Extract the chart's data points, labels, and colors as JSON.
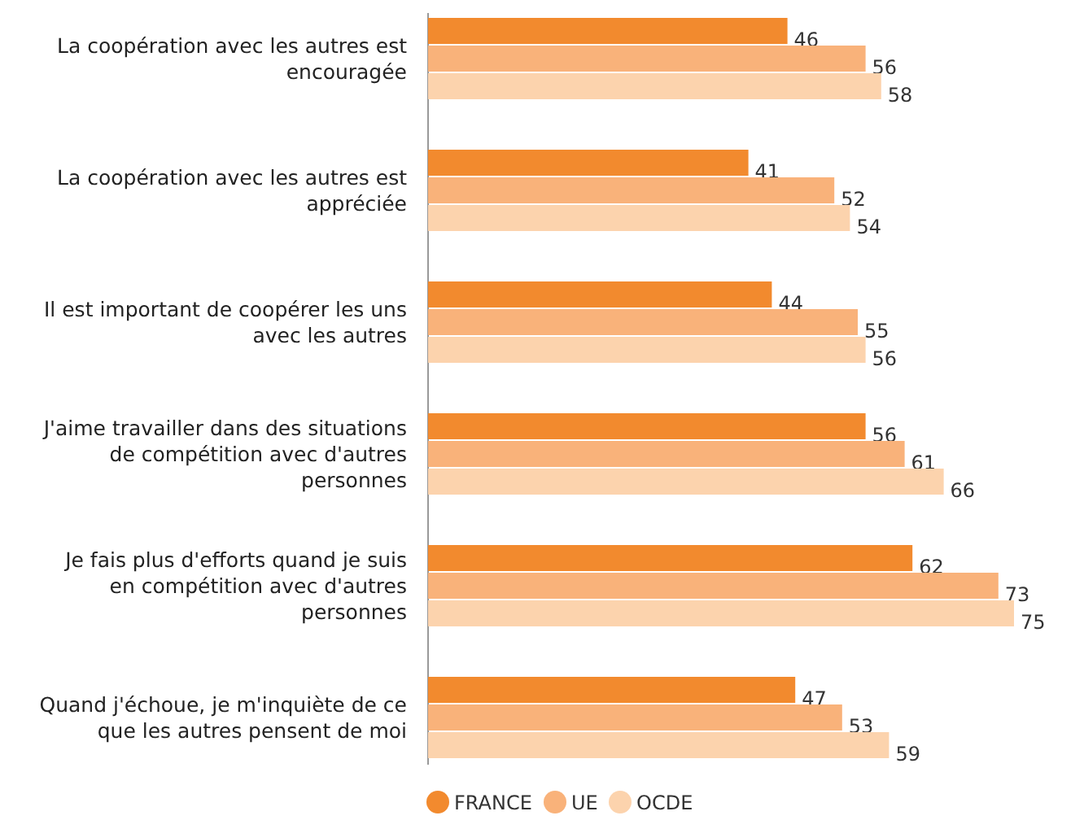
{
  "chart_data": {
    "type": "bar",
    "orientation": "horizontal",
    "categories": [
      "La coopération avec les autres est encouragée",
      "La coopération avec les autres est appréciée",
      "Il est important de coopérer les uns avec les autres",
      "J'aime travailler dans des situations de compétition avec d'autres personnes",
      "Je fais plus d'efforts quand je suis en compétition avec d'autres personnes",
      "Quand j'échoue, je m'inquiète de ce que les autres pensent de moi"
    ],
    "series": [
      {
        "name": "FRANCE",
        "color": "#f28a2e",
        "values": [
          46,
          41,
          44,
          56,
          62,
          47
        ]
      },
      {
        "name": "UE",
        "color": "#f9b27a",
        "values": [
          56,
          52,
          55,
          61,
          73,
          53
        ]
      },
      {
        "name": "OCDE",
        "color": "#fcd3ad",
        "values": [
          58,
          54,
          56,
          66,
          75,
          59
        ]
      }
    ],
    "data_labels": true,
    "legend": "bottom"
  }
}
